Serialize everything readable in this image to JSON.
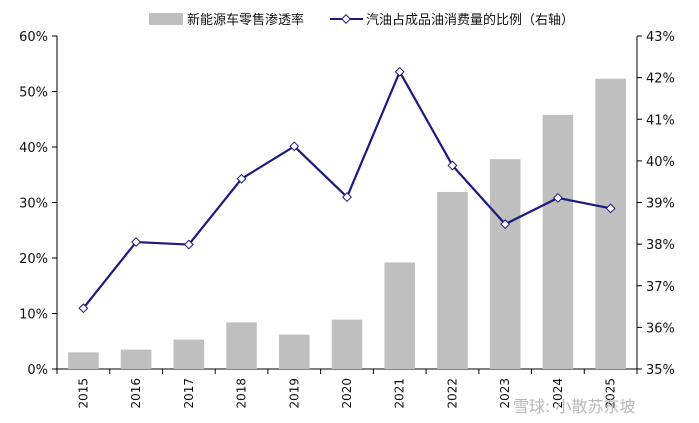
{
  "chart_data": {
    "type": "bar",
    "categories": [
      "2015",
      "2016",
      "2017",
      "2018",
      "2019",
      "2020",
      "2021",
      "2022",
      "2023",
      "2024",
      "2025"
    ],
    "series": [
      {
        "name": "新能源车零售渗透率",
        "type": "bar",
        "axis": "left",
        "color": "#bfbfbf",
        "values": [
          3.0,
          3.5,
          5.3,
          8.4,
          6.2,
          8.9,
          19.2,
          31.9,
          37.8,
          45.8,
          52.3
        ]
      },
      {
        "name": "汽油占成品油消费量的比例（右轴）",
        "type": "line",
        "axis": "right",
        "color": "#1a1a80",
        "marker": "diamond",
        "values": [
          36.46,
          38.05,
          37.99,
          39.57,
          40.35,
          39.13,
          42.14,
          39.89,
          38.48,
          39.11,
          38.86
        ]
      }
    ],
    "y_left": {
      "ylim": [
        0,
        60
      ],
      "ticks": [
        "0%",
        "10%",
        "20%",
        "30%",
        "40%",
        "50%",
        "60%"
      ]
    },
    "y_right": {
      "ylim": [
        35,
        43
      ],
      "ticks": [
        "35%",
        "36%",
        "37%",
        "38%",
        "39%",
        "40%",
        "41%",
        "42%",
        "43%"
      ]
    },
    "legend_position": "top",
    "grid": false
  },
  "watermark": "雪球: 小散苏东坡"
}
